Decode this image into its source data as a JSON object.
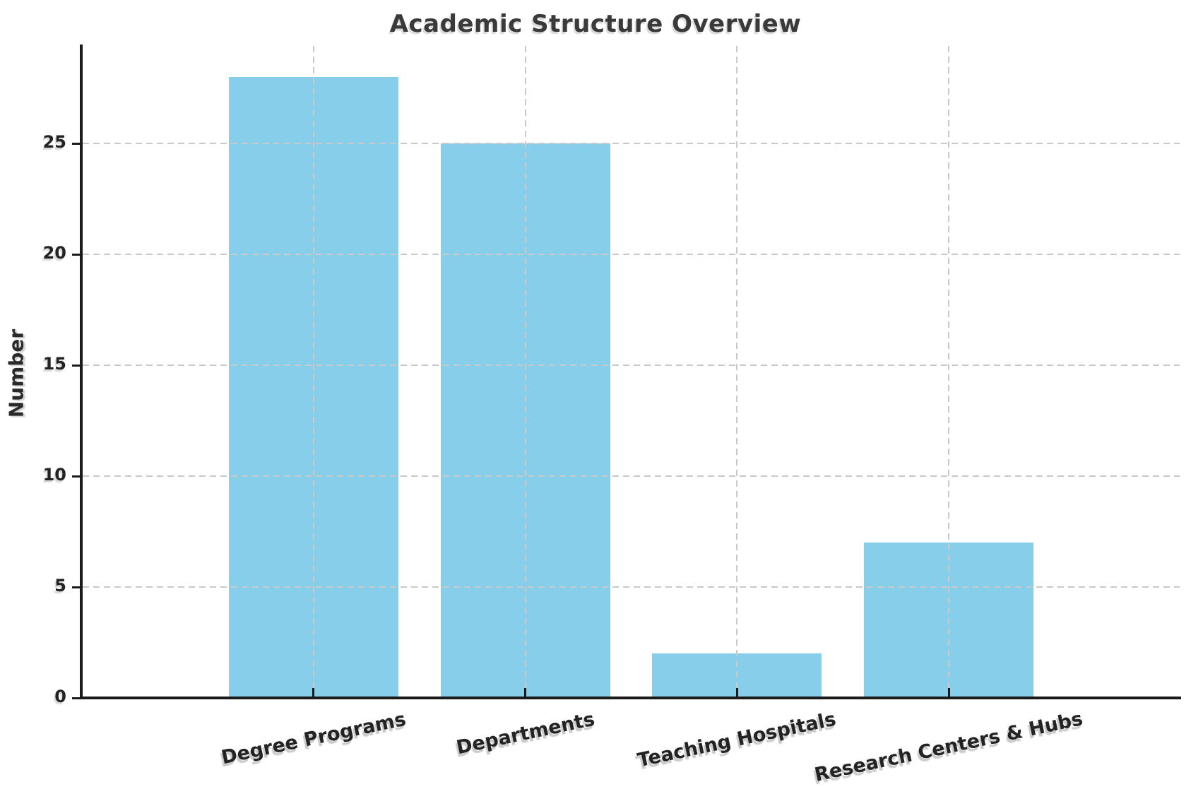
{
  "chart_data": {
    "type": "bar",
    "title": "Academic Structure Overview",
    "categories": [
      "Degree Programs",
      "Departments",
      "Teaching Hospitals",
      "Research Centers & Hubs"
    ],
    "values": [
      28,
      25,
      2,
      7
    ],
    "xlabel": "",
    "ylabel": "Number",
    "yticks": [
      0,
      5,
      10,
      15,
      20,
      25
    ],
    "ylim": [
      0,
      29.4
    ],
    "bar_color": "#87CEEB",
    "grid": true,
    "grid_style": "dashed",
    "grid_color": "#c9c9c9",
    "grid_above_bars": true,
    "x_tick_label_rotation_deg": 12,
    "legend_position": "none",
    "background_color": "#ffffff",
    "spine_color": "#1a1a1a",
    "title_color": "#3a3a3a",
    "tick_label_color": "#232323",
    "bar_width_fraction": 0.8
  }
}
